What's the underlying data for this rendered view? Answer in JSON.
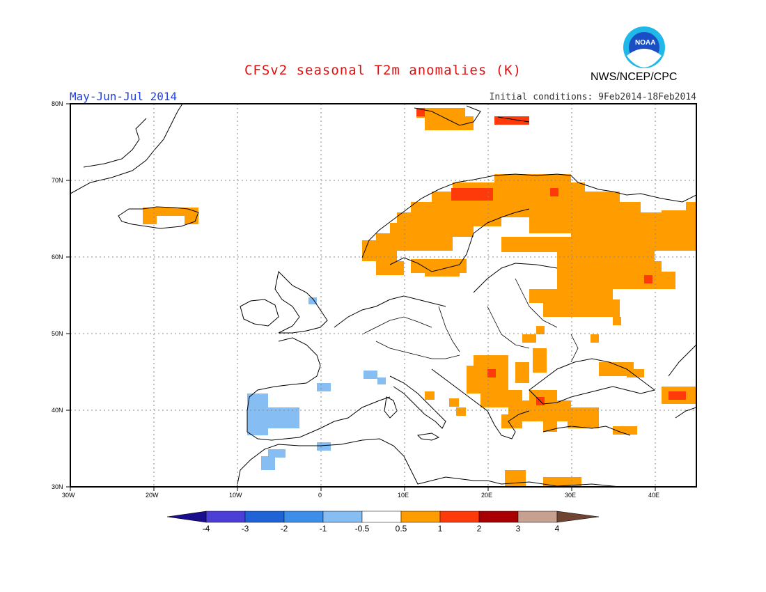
{
  "header": {
    "title": "CFSv2 seasonal T2m anomalies (K)",
    "period": "May-Jun-Jul 2014",
    "initial_conditions": "Initial conditions: 9Feb2014-18Feb2014",
    "agency": "NWS/NCEP/CPC",
    "logo_text": "NOAA"
  },
  "map": {
    "lon_labels": [
      "30W",
      "20W",
      "10W",
      "0",
      "10E",
      "20E",
      "30E",
      "40E"
    ],
    "lat_labels": [
      "80N",
      "70N",
      "60N",
      "50N",
      "40N",
      "30N"
    ],
    "lon_range": [
      -30,
      45
    ],
    "lat_range": [
      30,
      80
    ],
    "grid": "dotted"
  },
  "colorbar": {
    "labels": [
      "-4",
      "-3",
      "-2",
      "-1",
      "-0.5",
      "0.5",
      "1",
      "2",
      "3",
      "4"
    ],
    "colors": [
      "#1a0d8c",
      "#4c3fd6",
      "#1f63d6",
      "#3d8ee8",
      "#86bdf2",
      "#ffffff",
      "#ff9d00",
      "#ff3a0a",
      "#a80000",
      "#c8a090",
      "#6e4432"
    ]
  },
  "anomaly_regions": [
    {
      "name": "scandinavia-warm",
      "level": "0.5-1",
      "color": "#ff9d00"
    },
    {
      "name": "northern-russia-warm",
      "level": "0.5-1",
      "color": "#ff9d00"
    },
    {
      "name": "balkans-warm",
      "level": "0.5-1",
      "color": "#ff9d00"
    },
    {
      "name": "iberia-cool",
      "level": "-1--0.5",
      "color": "#86bdf2"
    },
    {
      "name": "north-norway-hot",
      "level": "1-2",
      "color": "#ff3a0a"
    }
  ]
}
